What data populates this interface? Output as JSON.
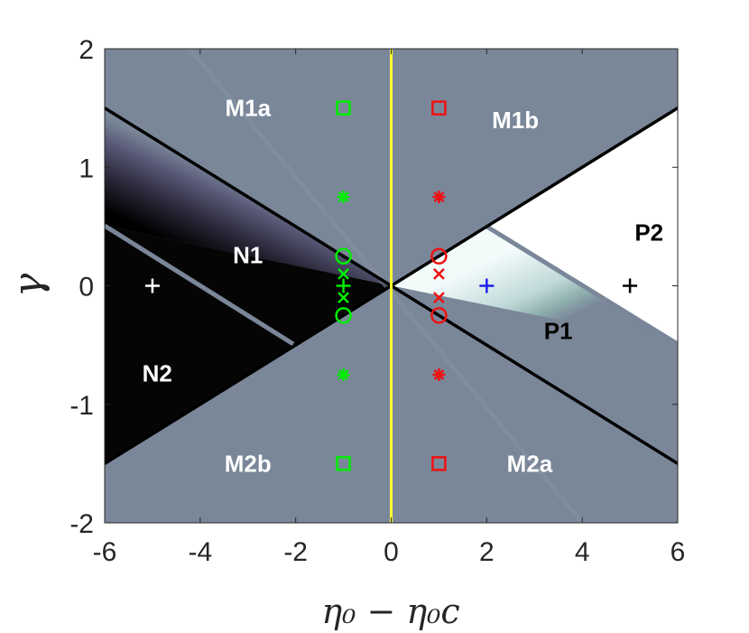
{
  "chart_data": {
    "type": "scatter",
    "xlabel": "η₀ − η₀c",
    "ylabel": "γ",
    "xlim": [
      -6,
      6
    ],
    "ylim": [
      -2,
      2
    ],
    "x_ticks": [
      "-6",
      "-4",
      "-2",
      "0",
      "2",
      "4",
      "6"
    ],
    "y_ticks": [
      "-2",
      "-1",
      "0",
      "1",
      "2"
    ],
    "grid": false,
    "regions": [
      {
        "label": "M1a",
        "x": -3,
        "y": 1.5,
        "color": "#ffffff"
      },
      {
        "label": "M1b",
        "x": 2.6,
        "y": 1.4,
        "color": "#ffffff"
      },
      {
        "label": "N1",
        "x": -3,
        "y": 0.26,
        "color": "#ffffff"
      },
      {
        "label": "N2",
        "x": -4.9,
        "y": -0.74,
        "color": "#ffffff"
      },
      {
        "label": "M2b",
        "x": -3,
        "y": -1.5,
        "color": "#ffffff"
      },
      {
        "label": "M2a",
        "x": 2.9,
        "y": -1.5,
        "color": "#ffffff"
      },
      {
        "label": "P2",
        "x": 5.4,
        "y": 0.45,
        "color": "#000000"
      },
      {
        "label": "P1",
        "x": 3.5,
        "y": -0.38,
        "color": "#000000"
      }
    ],
    "boundary_lines": [
      {
        "from": [
          -6,
          1.5
        ],
        "to": [
          6,
          -1.5
        ],
        "color": "#000000"
      },
      {
        "from": [
          -6,
          -1.5
        ],
        "to": [
          6,
          1.5
        ],
        "color": "#000000"
      },
      {
        "from": [
          0,
          -2
        ],
        "to": [
          0,
          2
        ],
        "color": "#ffff33"
      }
    ],
    "series": [
      {
        "color": "#00ee00",
        "points": [
          {
            "x": -1,
            "y": 1.5,
            "marker": "square"
          },
          {
            "x": -1,
            "y": 0.75,
            "marker": "asterisk"
          },
          {
            "x": -1,
            "y": 0.25,
            "marker": "circle"
          },
          {
            "x": -1,
            "y": 0.1,
            "marker": "x"
          },
          {
            "x": -1,
            "y": 0.0,
            "marker": "plus"
          },
          {
            "x": -1,
            "y": -0.1,
            "marker": "x"
          },
          {
            "x": -1,
            "y": -0.25,
            "marker": "circle"
          },
          {
            "x": -1,
            "y": -0.75,
            "marker": "asterisk"
          },
          {
            "x": -1,
            "y": -1.5,
            "marker": "square"
          }
        ]
      },
      {
        "color": "#ee1111",
        "points": [
          {
            "x": 1,
            "y": 1.5,
            "marker": "square"
          },
          {
            "x": 1,
            "y": 0.75,
            "marker": "asterisk"
          },
          {
            "x": 1,
            "y": 0.25,
            "marker": "circle"
          },
          {
            "x": 1,
            "y": 0.1,
            "marker": "x"
          },
          {
            "x": 1,
            "y": -0.1,
            "marker": "x"
          },
          {
            "x": 1,
            "y": -0.25,
            "marker": "circle"
          },
          {
            "x": 1,
            "y": -0.75,
            "marker": "asterisk"
          },
          {
            "x": 1,
            "y": -1.5,
            "marker": "square"
          }
        ]
      },
      {
        "color": "#ffffff",
        "points": [
          {
            "x": -5,
            "y": 0,
            "marker": "plus"
          }
        ]
      },
      {
        "color": "#1f1fee",
        "points": [
          {
            "x": 2,
            "y": 0,
            "marker": "plus"
          }
        ]
      },
      {
        "color": "#000000",
        "points": [
          {
            "x": 5,
            "y": 0,
            "marker": "plus"
          }
        ]
      }
    ]
  }
}
